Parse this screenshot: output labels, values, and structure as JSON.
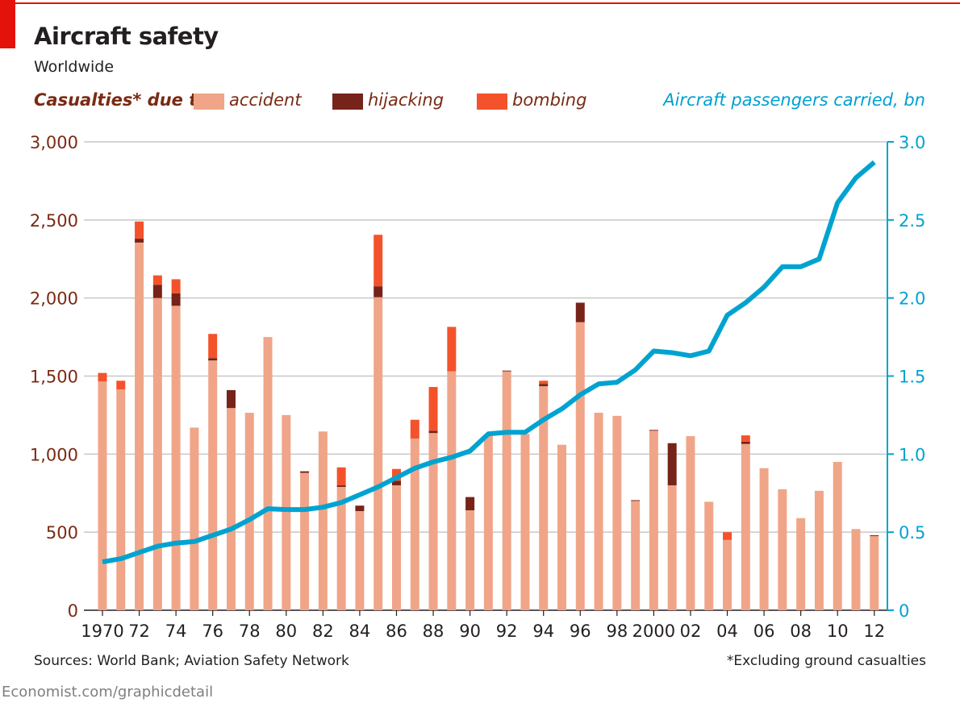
{
  "title": "Aircraft safety",
  "subtitle": "Worldwide",
  "legend": {
    "lead": "Casualties* due to:",
    "accident": "accident",
    "hijacking": "hijacking",
    "bombing": "bombing",
    "line": "Aircraft passengers carried, bn"
  },
  "colors": {
    "accident": "#f0a588",
    "hijacking": "#76231a",
    "bombing": "#f4522b",
    "line": "#00a3d0",
    "left_axis": "#7a2a13",
    "grid": "#c8c8c8",
    "brand": "#e3120b"
  },
  "footer": {
    "source": "Sources: World Bank; Aviation Safety Network",
    "footnote": "*Excluding ground casualties",
    "url": "Economist.com/graphicdetail"
  },
  "chart_data": {
    "type": "bar",
    "stacked": true,
    "title": "Aircraft safety",
    "subtitle": "Worldwide",
    "years": [
      1970,
      1971,
      1972,
      1973,
      1974,
      1975,
      1976,
      1977,
      1978,
      1979,
      1980,
      1981,
      1982,
      1983,
      1984,
      1985,
      1986,
      1987,
      1988,
      1989,
      1990,
      1991,
      1992,
      1993,
      1994,
      1995,
      1996,
      1997,
      1998,
      1999,
      2000,
      2001,
      2002,
      2003,
      2004,
      2005,
      2006,
      2007,
      2008,
      2009,
      2010,
      2011,
      2012
    ],
    "x_tick_labels": [
      "1970",
      "",
      "72",
      "",
      "74",
      "",
      "76",
      "",
      "78",
      "",
      "80",
      "",
      "82",
      "",
      "84",
      "",
      "86",
      "",
      "88",
      "",
      "90",
      "",
      "92",
      "",
      "94",
      "",
      "96",
      "",
      "98",
      "",
      "2000",
      "",
      "02",
      "",
      "04",
      "",
      "06",
      "",
      "08",
      "",
      "10",
      "",
      "12"
    ],
    "series": [
      {
        "name": "accident",
        "values": [
          1465,
          1415,
          2355,
          2000,
          1950,
          1170,
          1600,
          1295,
          1265,
          1750,
          1250,
          880,
          1145,
          790,
          635,
          2005,
          800,
          1100,
          1135,
          1530,
          640,
          1115,
          1530,
          1130,
          1435,
          1060,
          1845,
          1265,
          1245,
          700,
          1150,
          800,
          1115,
          695,
          450,
          1065,
          910,
          775,
          590,
          765,
          950,
          520,
          475
        ]
      },
      {
        "name": "hijacking",
        "values": [
          0,
          0,
          25,
          85,
          80,
          0,
          15,
          115,
          0,
          0,
          0,
          10,
          0,
          10,
          35,
          70,
          30,
          0,
          15,
          0,
          85,
          0,
          5,
          0,
          15,
          0,
          125,
          0,
          0,
          5,
          5,
          270,
          0,
          0,
          0,
          15,
          0,
          0,
          0,
          0,
          0,
          0,
          5
        ]
      },
      {
        "name": "bombing",
        "values": [
          55,
          55,
          110,
          60,
          90,
          0,
          155,
          0,
          0,
          0,
          0,
          0,
          0,
          115,
          0,
          330,
          75,
          120,
          280,
          285,
          0,
          0,
          0,
          0,
          20,
          0,
          0,
          0,
          0,
          0,
          0,
          0,
          0,
          0,
          50,
          40,
          0,
          0,
          0,
          0,
          0,
          0,
          0
        ]
      }
    ],
    "line_series": {
      "name": "Aircraft passengers carried, bn",
      "values": [
        0.31,
        0.33,
        0.37,
        0.41,
        0.43,
        0.44,
        0.48,
        0.52,
        0.58,
        0.65,
        0.645,
        0.645,
        0.66,
        0.69,
        0.74,
        0.79,
        0.85,
        0.91,
        0.95,
        0.98,
        1.02,
        1.13,
        1.14,
        1.14,
        1.22,
        1.29,
        1.38,
        1.45,
        1.46,
        1.54,
        1.66,
        1.65,
        1.63,
        1.66,
        1.89,
        1.97,
        2.07,
        2.2,
        2.2,
        2.25,
        2.61,
        2.77,
        2.87
      ]
    },
    "ylim_left": [
      0,
      3000
    ],
    "yticks_left": [
      0,
      500,
      1000,
      1500,
      2000,
      2500,
      3000
    ],
    "ytick_labels_left": [
      "0",
      "500",
      "1,000",
      "1,500",
      "2,000",
      "2,500",
      "3,000"
    ],
    "ylim_right": [
      0,
      3.0
    ],
    "yticks_right": [
      0,
      0.5,
      1.0,
      1.5,
      2.0,
      2.5,
      3.0
    ],
    "ytick_labels_right": [
      "0",
      "0.5",
      "1.0",
      "1.5",
      "2.0",
      "2.5",
      "3.0"
    ],
    "ylabel_left": "Casualties* due to:",
    "ylabel_right": "Aircraft passengers carried, bn",
    "grid": true
  }
}
